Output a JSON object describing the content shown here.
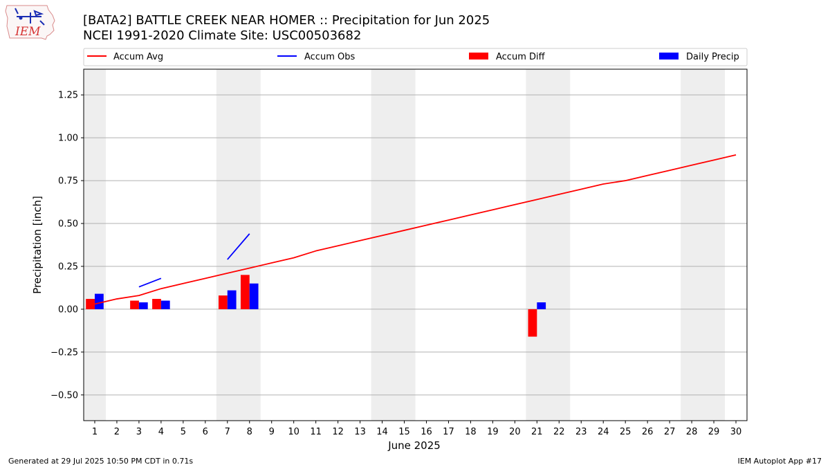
{
  "header": {
    "title_line1": "[BATA2] BATTLE CREEK NEAR HOMER :: Precipitation for Jun 2025",
    "title_line2": "NCEI 1991-2020 Climate Site: USC00503682"
  },
  "logo": {
    "text": "IEM"
  },
  "footer": {
    "left": "Generated at 29 Jul 2025 10:50 PM CDT in 0.71s",
    "right": "IEM Autoplot App #17"
  },
  "legend": {
    "items": [
      {
        "label": "Accum Avg",
        "kind": "line",
        "color": "#ff0000"
      },
      {
        "label": "Accum Obs",
        "kind": "line",
        "color": "#0000ff"
      },
      {
        "label": "Accum Diff",
        "kind": "bar",
        "color": "#ff0000"
      },
      {
        "label": "Daily Precip",
        "kind": "bar",
        "color": "#0000ff"
      }
    ]
  },
  "chart_data": {
    "type": "bar",
    "xlabel": "June 2025",
    "ylabel": "Precipitation [inch]",
    "x": [
      1,
      2,
      3,
      4,
      5,
      6,
      7,
      8,
      9,
      10,
      11,
      12,
      13,
      14,
      15,
      16,
      17,
      18,
      19,
      20,
      21,
      22,
      23,
      24,
      25,
      26,
      27,
      28,
      29,
      30
    ],
    "xlim": [
      0.5,
      30.5
    ],
    "ylim": [
      -0.65,
      1.4
    ],
    "yticks": [
      -0.5,
      -0.25,
      0.0,
      0.25,
      0.5,
      0.75,
      1.0,
      1.25
    ],
    "ytick_labels": [
      "−0.50",
      "−0.25",
      "0.00",
      "0.25",
      "0.50",
      "0.75",
      "1.00",
      "1.25"
    ],
    "grid": "y",
    "weekend_shading": [
      [
        0.5,
        1.5
      ],
      [
        6.5,
        8.5
      ],
      [
        13.5,
        15.5
      ],
      [
        20.5,
        22.5
      ],
      [
        27.5,
        29.5
      ]
    ],
    "series": [
      {
        "name": "Accum Avg",
        "kind": "line",
        "color": "#ff0000",
        "points": [
          [
            1,
            0.03
          ],
          [
            2,
            0.06
          ],
          [
            3,
            0.08
          ],
          [
            4,
            0.12
          ],
          [
            5,
            0.15
          ],
          [
            6,
            0.18
          ],
          [
            7,
            0.21
          ],
          [
            8,
            0.24
          ],
          [
            9,
            0.27
          ],
          [
            10,
            0.3
          ],
          [
            11,
            0.34
          ],
          [
            12,
            0.37
          ],
          [
            13,
            0.4
          ],
          [
            14,
            0.43
          ],
          [
            15,
            0.46
          ],
          [
            16,
            0.49
          ],
          [
            17,
            0.52
          ],
          [
            18,
            0.55
          ],
          [
            19,
            0.58
          ],
          [
            20,
            0.61
          ],
          [
            21,
            0.64
          ],
          [
            22,
            0.67
          ],
          [
            23,
            0.7
          ],
          [
            24,
            0.73
          ],
          [
            25,
            0.75
          ],
          [
            26,
            0.78
          ],
          [
            27,
            0.81
          ],
          [
            28,
            0.84
          ],
          [
            29,
            0.87
          ],
          [
            30,
            0.9
          ]
        ]
      },
      {
        "name": "Accum Obs",
        "kind": "line",
        "color": "#0000ff",
        "segments": [
          [
            [
              3,
              0.13
            ],
            [
              4,
              0.18
            ]
          ],
          [
            [
              7,
              0.29
            ],
            [
              8,
              0.44
            ]
          ]
        ]
      },
      {
        "name": "Accum Diff",
        "kind": "bar",
        "color": "#ff0000",
        "points": [
          [
            1,
            0.06
          ],
          [
            3,
            0.05
          ],
          [
            4,
            0.06
          ],
          [
            7,
            0.08
          ],
          [
            8,
            0.2
          ],
          [
            21,
            -0.16
          ]
        ]
      },
      {
        "name": "Daily Precip",
        "kind": "bar",
        "color": "#0000ff",
        "points": [
          [
            1,
            0.09
          ],
          [
            3,
            0.04
          ],
          [
            4,
            0.05
          ],
          [
            7,
            0.11
          ],
          [
            8,
            0.15
          ],
          [
            21,
            0.04
          ]
        ]
      }
    ]
  }
}
